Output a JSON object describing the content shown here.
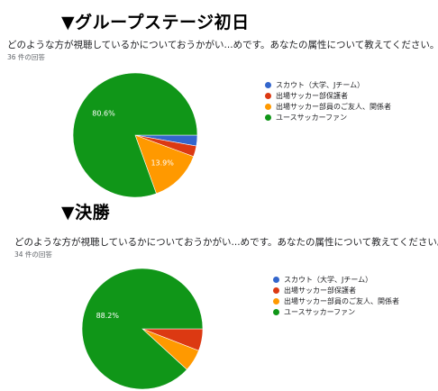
{
  "chart_data": [
    {
      "type": "pie",
      "heading": "▼グループステージ初日",
      "title": "どのような方が視聴しているかについておうかがい...めです。あなたの属性について教えてください。",
      "response_count": "36 件の回答",
      "categories": [
        "スカウト（大学、Jチーム）",
        "出場サッカー部保護者",
        "出場サッカー部員のご友人、関係者",
        "ユースサッカーファン"
      ],
      "values": [
        2.8,
        2.8,
        13.9,
        80.6
      ],
      "slice_labels": [
        "",
        "",
        "13.9%",
        "80.6%"
      ],
      "colors": [
        "#3366cc",
        "#dc3912",
        "#ff9900",
        "#109618"
      ],
      "legend_position": "right"
    },
    {
      "type": "pie",
      "heading": "▼決勝",
      "title": "どのような方が視聴しているかについておうかがい...めです。あなたの属性について教えてください。",
      "response_count": "34 件の回答",
      "categories": [
        "スカウト（大学、Jチーム）",
        "出場サッカー部保護者",
        "出場サッカー部員のご友人、関係者",
        "ユースサッカーファン"
      ],
      "values": [
        0,
        5.9,
        5.9,
        88.2
      ],
      "slice_labels": [
        "",
        "",
        "",
        "88.2%"
      ],
      "colors": [
        "#3366cc",
        "#dc3912",
        "#ff9900",
        "#109618"
      ],
      "legend_position": "right"
    }
  ]
}
